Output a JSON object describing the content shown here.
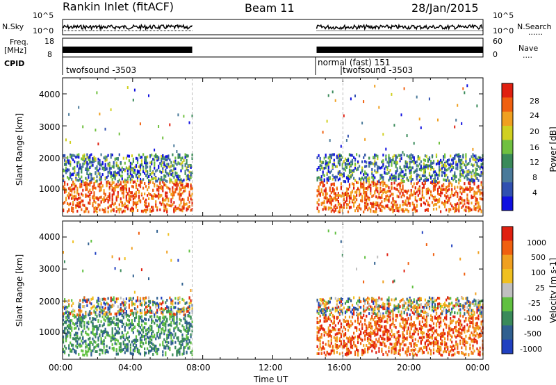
{
  "header": {
    "title": "Rankin Inlet (fitACF)",
    "beam": "Beam 11",
    "date": "28/Jan/2015"
  },
  "left_labels": {
    "nsky": "N.Sky",
    "freq_line1": "Freq.",
    "freq_line2": "[MHz]",
    "cpid": "CPID"
  },
  "right_labels": {
    "nsearch": "N.Search",
    "nsearch_dots": "......",
    "nave": "Nave",
    "nave_dots": "...."
  },
  "top_axes": {
    "nsky_ticks": [
      "10^5",
      "10^0"
    ],
    "nsearch_ticks": [
      "10^5",
      "10^0"
    ],
    "freq_ticks": [
      "18",
      "8"
    ],
    "nave_ticks": [
      "60",
      "0"
    ]
  },
  "cpid_labels": {
    "first": "twofsound -3503",
    "second": "normal (fast) 151",
    "third": "twofsound -3503"
  },
  "chart_data": [
    {
      "type": "heatmap",
      "name": "Power",
      "ylabel": "Slant Range [km]",
      "yticks": [
        "1000",
        "2000",
        "3000",
        "4000"
      ],
      "y_range_km": [
        180,
        4500
      ],
      "x_range_hours": [
        0,
        24
      ],
      "colorbar_label": "Power [dB]",
      "colorbar_ticks": [
        "4",
        "8",
        "12",
        "16",
        "20",
        "24",
        "28"
      ],
      "colorbar_colors": [
        "#1010e0",
        "#3050b0",
        "#4a7a9a",
        "#3a8a5a",
        "#70c040",
        "#d0d020",
        "#f0a020",
        "#f06010",
        "#e02010"
      ],
      "data_time_segments_hours": [
        [
          0.0,
          7.4
        ],
        [
          14.5,
          24.0
        ]
      ]
    },
    {
      "type": "heatmap",
      "name": "Velocity",
      "ylabel": "Slant Range [km]",
      "yticks": [
        "1000",
        "2000",
        "3000",
        "4000"
      ],
      "y_range_km": [
        180,
        4500
      ],
      "x_range_hours": [
        0,
        24
      ],
      "colorbar_label": "Velocity [m s-1]",
      "colorbar_ticks": [
        "1000",
        "500",
        "100",
        "25",
        "-25",
        "-100",
        "-500",
        "-1000"
      ],
      "colorbar_colors": [
        "#2040c0",
        "#306090",
        "#3a8a5a",
        "#60c040",
        "#c0c0c0",
        "#f0c020",
        "#f0a020",
        "#f06010",
        "#e02010"
      ],
      "data_time_segments_hours": [
        [
          0.0,
          7.4
        ],
        [
          14.5,
          24.0
        ]
      ]
    }
  ],
  "x_axis": {
    "ticks": [
      "00:00",
      "04:00",
      "08:00",
      "12:00",
      "16:00",
      "20:00",
      "00:00"
    ],
    "label": "Time UT"
  }
}
